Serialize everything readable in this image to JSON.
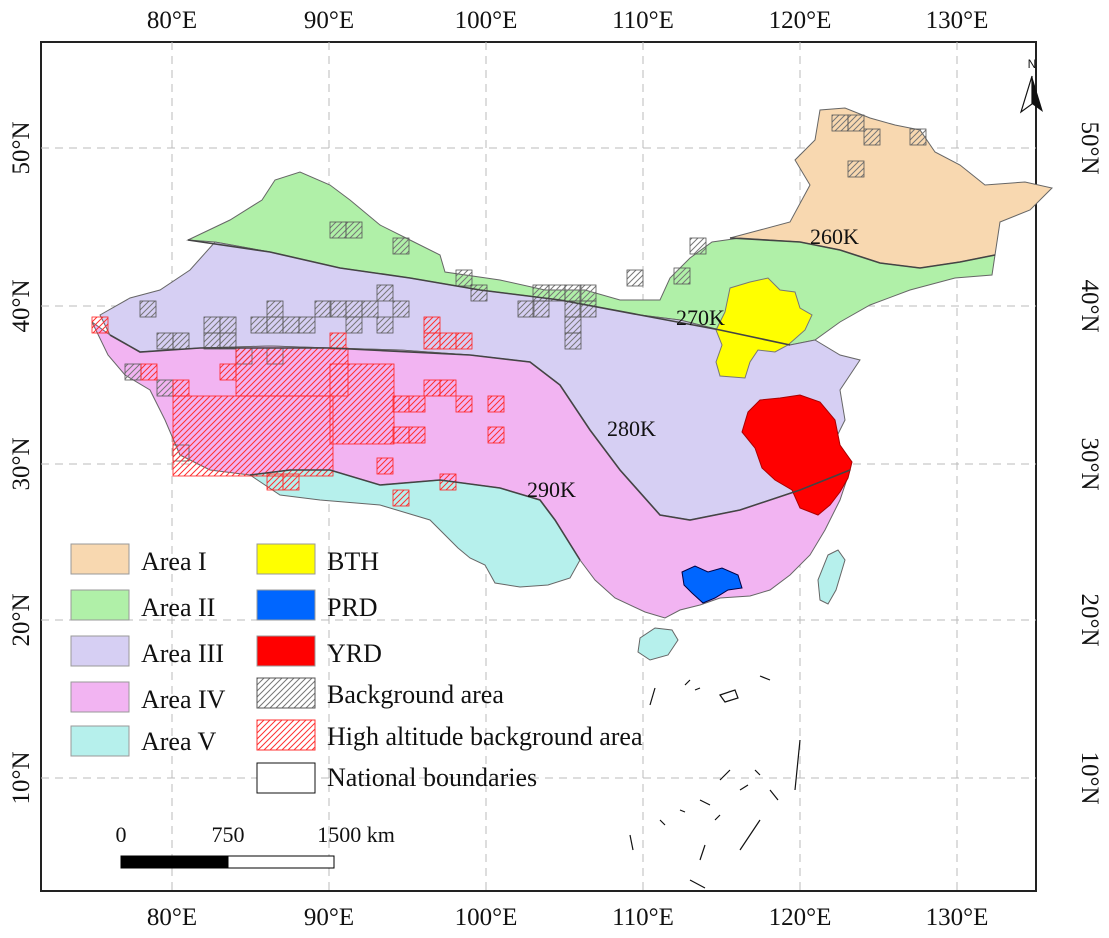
{
  "axes": {
    "lon_ticks": [
      "80°E",
      "90°E",
      "100°E",
      "110°E",
      "120°E",
      "130°E"
    ],
    "lat_ticks": [
      "50°N",
      "40°N",
      "30°N",
      "20°N",
      "10°N"
    ]
  },
  "north_arrow": {
    "label": "N"
  },
  "isotherms": [
    "260K",
    "270K",
    "280K",
    "290K"
  ],
  "legend": {
    "areas": [
      {
        "label": "Area I",
        "color": "#f8d8b0"
      },
      {
        "label": "Area II",
        "color": "#b0f0a8"
      },
      {
        "label": "Area III",
        "color": "#d6cff3"
      },
      {
        "label": "Area IV",
        "color": "#f2b4f2"
      },
      {
        "label": "Area V",
        "color": "#b6f0ec"
      }
    ],
    "regions": [
      {
        "label": "BTH",
        "color": "#ffff00"
      },
      {
        "label": "PRD",
        "color": "#0066ff"
      },
      {
        "label": "YRD",
        "color": "#ff0000"
      }
    ],
    "other": [
      {
        "label": "Background area",
        "pattern": "hatch-gray"
      },
      {
        "label": "High altitude background area",
        "pattern": "hatch-red"
      },
      {
        "label": "National boundaries",
        "pattern": "outline"
      }
    ]
  },
  "scale_bar": {
    "labels": [
      "0",
      "750",
      "1500 km"
    ]
  }
}
